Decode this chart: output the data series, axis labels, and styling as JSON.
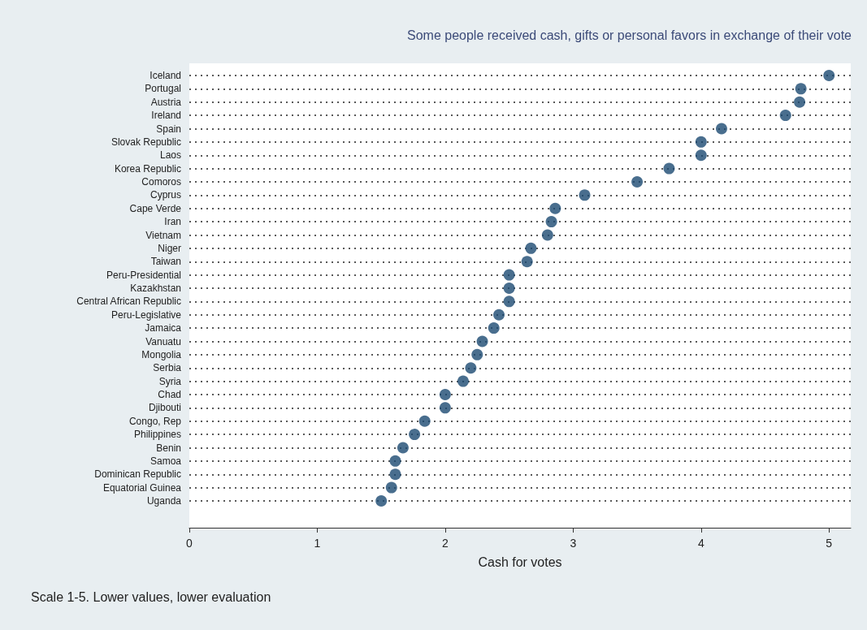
{
  "chart_data": {
    "type": "scatter",
    "title": "Some people received cash, gifts or personal favors in exchange of their vote",
    "xlabel": "Cash for votes",
    "annotations": [
      "Scale 1-5. Lower values, lower evaluation"
    ],
    "categories": [
      "Iceland",
      "Portugal",
      "Austria",
      "Ireland",
      "Spain",
      "Slovak Republic",
      "Laos",
      "Korea Republic",
      "Comoros",
      "Cyprus",
      "Cape Verde",
      "Iran",
      "Vietnam",
      "Niger",
      "Taiwan",
      "Peru-Presidential",
      "Kazakhstan",
      "Central African Republic",
      "Peru-Legislative",
      "Jamaica",
      "Vanuatu",
      "Mongolia",
      "Serbia",
      "Syria",
      "Chad",
      "Djibouti",
      "Congo, Rep",
      "Philippines",
      "Benin",
      "Samoa",
      "Dominican Republic",
      "Equatorial Guinea",
      "Uganda"
    ],
    "orientation": "horizontal",
    "values": [
      5.0,
      4.78,
      4.77,
      4.66,
      4.16,
      4.0,
      4.0,
      3.75,
      3.5,
      3.09,
      2.86,
      2.83,
      2.8,
      2.67,
      2.64,
      2.5,
      2.5,
      2.5,
      2.42,
      2.38,
      2.29,
      2.25,
      2.2,
      2.14,
      2.0,
      2.0,
      1.84,
      1.76,
      1.67,
      1.61,
      1.61,
      1.58,
      1.5
    ],
    "color": "#1b4a72",
    "xlim": [
      0,
      5.17
    ],
    "xticks": [
      0,
      1,
      2,
      3,
      4,
      5
    ],
    "grid": "y",
    "marker": "circle"
  }
}
